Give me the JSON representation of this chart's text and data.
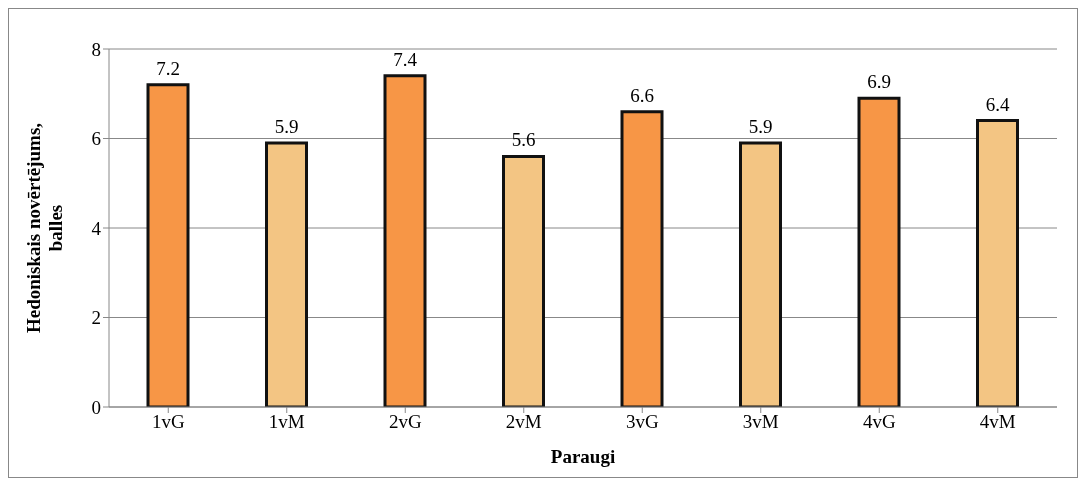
{
  "chart_data": {
    "type": "bar",
    "xlabel": "Paraugi",
    "ylabel": "Hedoniskais novērtējums, balles",
    "categories": [
      "1vG",
      "1vM",
      "2vG",
      "2vM",
      "3vG",
      "3vM",
      "4vG",
      "4vM"
    ],
    "values": [
      7.2,
      5.9,
      7.4,
      5.6,
      6.6,
      5.9,
      6.9,
      6.4
    ],
    "colors": [
      "#f79646",
      "#f3c583",
      "#f79646",
      "#f3c583",
      "#f79646",
      "#f3c583",
      "#f79646",
      "#f3c583"
    ],
    "ylim": [
      0,
      8
    ],
    "yticks": [
      0,
      2,
      4,
      6,
      8
    ],
    "grid": "y",
    "data_labels": true
  }
}
